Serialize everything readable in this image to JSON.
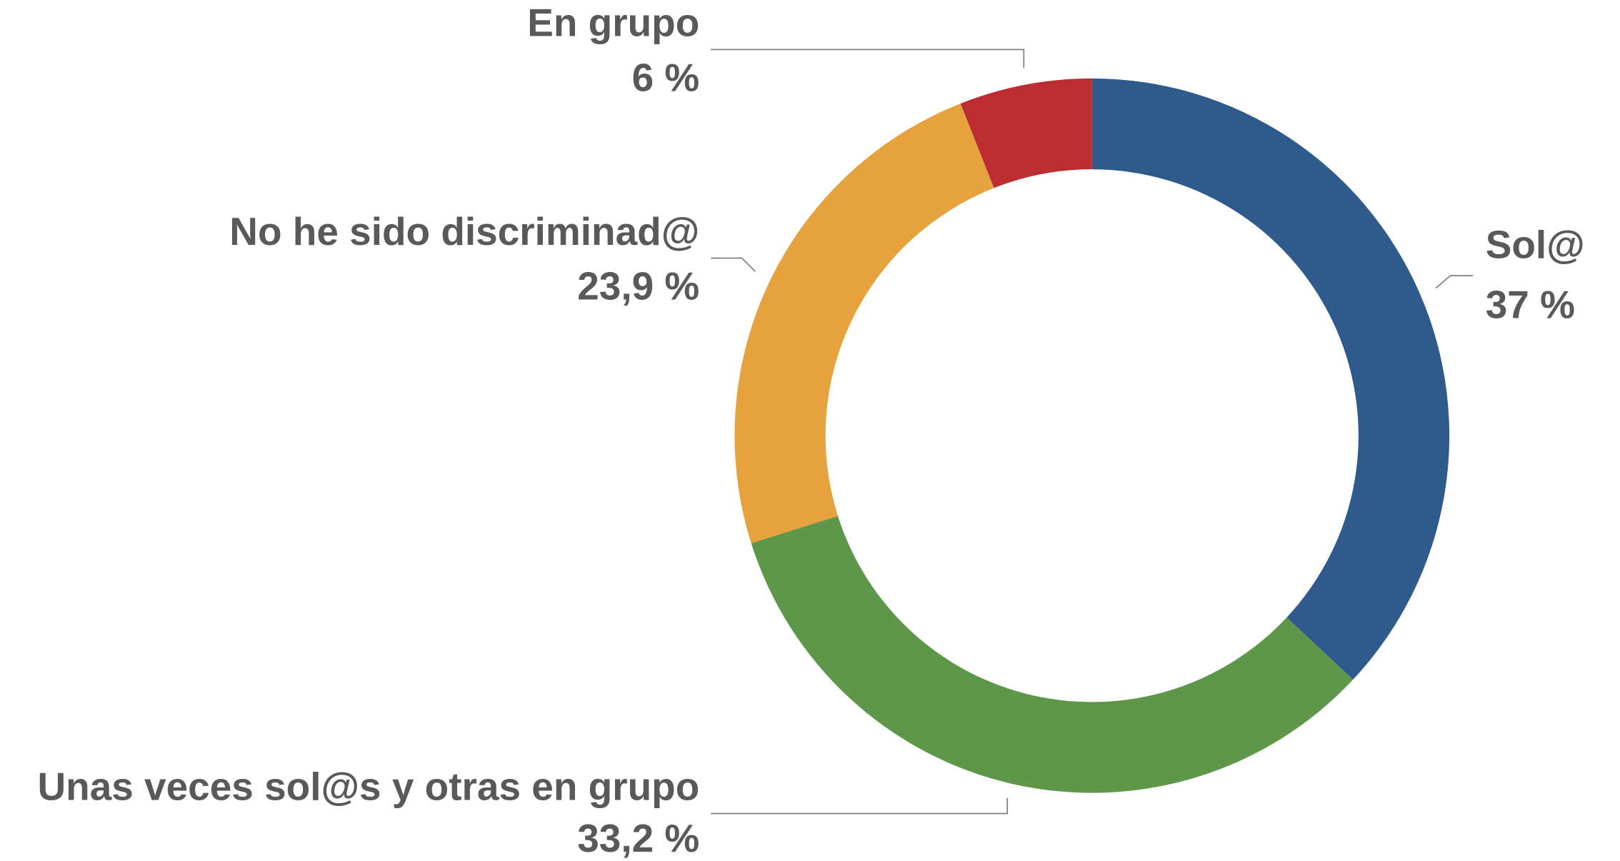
{
  "chart_data": {
    "type": "pie",
    "donut": true,
    "categories": [
      "Sol@",
      "Unas veces sol@s y otras en grupo",
      "No he sido discriminad@",
      "En grupo"
    ],
    "values": [
      37,
      33.2,
      23.9,
      6
    ],
    "value_labels": [
      "37 %",
      "33,2 %",
      "23,9 %",
      "6 %"
    ],
    "colors": [
      "#2e5a8c",
      "#5e9749",
      "#e6a23c",
      "#bb2d31"
    ]
  }
}
